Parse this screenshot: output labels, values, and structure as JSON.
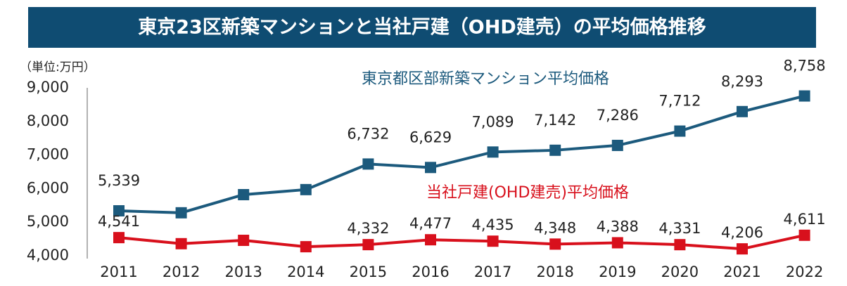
{
  "chart_data": {
    "type": "line",
    "title": "東京23区新築マンションと当社戸建（OHD建売）の平均価格推移",
    "unit_label": "（単位:万円）",
    "categories": [
      "2011",
      "2012",
      "2013",
      "2014",
      "2015",
      "2016",
      "2017",
      "2018",
      "2019",
      "2020",
      "2021",
      "2022"
    ],
    "series": [
      {
        "name": "東京都区部新築マンション平均価格",
        "color": "#1c5a7d",
        "values": [
          5339,
          5280,
          5820,
          5970,
          6732,
          6629,
          7089,
          7142,
          7286,
          7712,
          8293,
          8758
        ],
        "value_labels": [
          "5,339",
          null,
          null,
          null,
          "6,732",
          "6,629",
          "7,089",
          "7,142",
          "7,286",
          "7,712",
          "8,293",
          "8,758"
        ]
      },
      {
        "name": "当社戸建(OHD建売)平均価格",
        "color": "#d8101c",
        "values": [
          4541,
          4360,
          4460,
          4270,
          4332,
          4477,
          4435,
          4348,
          4388,
          4331,
          4206,
          4611
        ],
        "value_labels": [
          "4,541",
          null,
          null,
          null,
          "4,332",
          "4,477",
          "4,435",
          "4,348",
          "4,388",
          "4,331",
          "4,206",
          "4,611"
        ]
      }
    ],
    "ylim": [
      4000,
      9000
    ],
    "yticks": [
      {
        "value": 4000,
        "label": "4,000"
      },
      {
        "value": 5000,
        "label": "5,000"
      },
      {
        "value": 6000,
        "label": "6,000"
      },
      {
        "value": 7000,
        "label": "7,000"
      },
      {
        "value": 8000,
        "label": "8,000"
      },
      {
        "value": 9000,
        "label": "9,000"
      }
    ],
    "grid": false
  }
}
